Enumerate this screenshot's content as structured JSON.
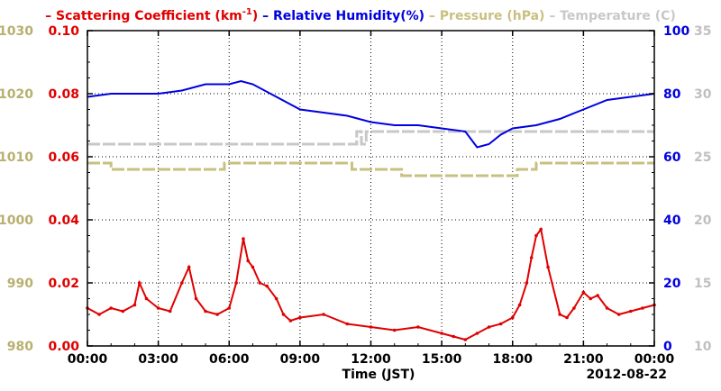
{
  "chart_data": {
    "type": "line",
    "legend": {
      "placement": "top",
      "items": [
        {
          "prefix": "–",
          "text": "Scattering Coefficient (km",
          "sup": "-1",
          "suffix": ")",
          "color": "#e00000"
        },
        {
          "prefix": "–",
          "text": "Relative Humidity(%)",
          "color": "#0000e0"
        },
        {
          "prefix": "–",
          "text": "Pressure (hPa)",
          "color": "#c8c080"
        },
        {
          "prefix": "–",
          "text": "Temperature (C)",
          "color": "#c8c8c8"
        }
      ]
    },
    "xlabel": "Time (JST)",
    "date_label": "2012-08-22",
    "x_ticks": [
      "00:00",
      "03:00",
      "06:00",
      "09:00",
      "12:00",
      "15:00",
      "18:00",
      "21:00",
      "00:00"
    ],
    "xlim": [
      0,
      24
    ],
    "grid": true,
    "axes": {
      "scattering": {
        "color": "#e00000",
        "ticks": [
          "0.00",
          "0.02",
          "0.04",
          "0.06",
          "0.08",
          "0.10"
        ],
        "ylim": [
          0,
          0.1
        ]
      },
      "pressure": {
        "color": "#b8b070",
        "ticks": [
          "980",
          "990",
          "1000",
          "1010",
          "1020",
          "1030"
        ],
        "ylim": [
          980,
          1030
        ]
      },
      "humidity": {
        "color": "#0000e0",
        "ticks": [
          "0",
          "20",
          "40",
          "60",
          "80",
          "100"
        ],
        "ylim": [
          0,
          100
        ]
      },
      "temperature": {
        "color": "#c0c0c0",
        "ticks": [
          "10",
          "15",
          "20",
          "25",
          "30",
          "35"
        ],
        "ylim": [
          10,
          35
        ]
      }
    },
    "series": [
      {
        "name": "Scattering Coefficient (km-1)",
        "axis": "scattering",
        "color": "#e00000",
        "markers": true,
        "x": [
          0,
          0.5,
          1,
          1.5,
          2,
          2.2,
          2.5,
          3,
          3.5,
          4,
          4.3,
          4.6,
          5,
          5.5,
          6,
          6.3,
          6.6,
          6.8,
          7,
          7.3,
          7.6,
          8,
          8.3,
          8.6,
          9,
          10,
          11,
          12,
          13,
          14,
          15,
          15.5,
          16,
          16.5,
          17,
          17.5,
          18,
          18.3,
          18.6,
          18.8,
          19,
          19.2,
          19.5,
          20,
          20.3,
          20.6,
          21,
          21.3,
          21.6,
          22,
          22.5,
          23,
          23.5,
          24
        ],
        "y": [
          0.012,
          0.01,
          0.012,
          0.011,
          0.013,
          0.02,
          0.015,
          0.012,
          0.011,
          0.02,
          0.025,
          0.015,
          0.011,
          0.01,
          0.012,
          0.02,
          0.034,
          0.027,
          0.025,
          0.02,
          0.019,
          0.015,
          0.01,
          0.008,
          0.009,
          0.01,
          0.007,
          0.006,
          0.005,
          0.006,
          0.004,
          0.003,
          0.002,
          0.004,
          0.006,
          0.007,
          0.009,
          0.013,
          0.02,
          0.028,
          0.035,
          0.037,
          0.025,
          0.01,
          0.009,
          0.012,
          0.017,
          0.015,
          0.016,
          0.012,
          0.01,
          0.011,
          0.012,
          0.013
        ]
      },
      {
        "name": "Relative Humidity(%)",
        "axis": "humidity",
        "color": "#0000e0",
        "markers": false,
        "x": [
          0,
          1,
          2,
          3,
          4,
          5,
          6,
          6.5,
          7,
          8,
          9,
          10,
          11,
          12,
          13,
          14,
          15,
          16,
          16.5,
          17,
          17.5,
          18,
          19,
          20,
          21,
          22,
          23,
          24
        ],
        "y": [
          79,
          80,
          80,
          80,
          81,
          83,
          83,
          84,
          83,
          79,
          75,
          74,
          73,
          71,
          70,
          70,
          69,
          68,
          63,
          64,
          67,
          69,
          70,
          72,
          75,
          78,
          79,
          80
        ]
      },
      {
        "name": "Pressure (hPa)",
        "axis": "pressure",
        "color": "#c8c080",
        "markers": false,
        "step": true,
        "x": [
          0,
          0.8,
          1.0,
          5.6,
          5.8,
          11.0,
          11.2,
          11.5,
          13.1,
          13.3,
          17.9,
          18.2,
          18.8,
          19.0,
          24
        ],
        "y": [
          1009,
          1009,
          1008,
          1008,
          1009,
          1009,
          1008,
          1008,
          1008,
          1007,
          1007,
          1008,
          1008,
          1009,
          1009
        ]
      },
      {
        "name": "Temperature (C)",
        "axis": "temperature",
        "color": "#c8c8c8",
        "markers": false,
        "step": true,
        "x": [
          0,
          11.2,
          11.4,
          11.6,
          11.8,
          12.0,
          24
        ],
        "y": [
          26,
          26,
          27,
          26,
          27,
          27,
          27
        ]
      }
    ]
  }
}
